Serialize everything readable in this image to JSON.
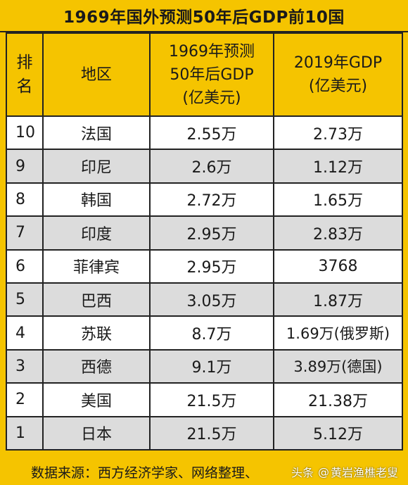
{
  "title": "1969年国外预测50年后GDP前10国",
  "headers": {
    "rank": [
      "排",
      "名"
    ],
    "region": "地区",
    "prediction": [
      "1969年预测",
      "50年后GDP",
      "(亿美元)"
    ],
    "gdp2019": [
      "2019年GDP",
      "(亿美元)"
    ]
  },
  "rows": [
    {
      "rank": "10",
      "region": "法国",
      "prediction": "2.55万",
      "gdp2019": "2.73万"
    },
    {
      "rank": "9",
      "region": "印尼",
      "prediction": "2.6万",
      "gdp2019": "1.12万"
    },
    {
      "rank": "8",
      "region": "韩国",
      "prediction": "2.72万",
      "gdp2019": "1.65万"
    },
    {
      "rank": "7",
      "region": "印度",
      "prediction": "2.95万",
      "gdp2019": "2.83万"
    },
    {
      "rank": "6",
      "region": "菲律宾",
      "prediction": "2.95万",
      "gdp2019": "3768"
    },
    {
      "rank": "5",
      "region": "巴西",
      "prediction": "3.05万",
      "gdp2019": "1.87万"
    },
    {
      "rank": "4",
      "region": "苏联",
      "prediction": "8.7万",
      "gdp2019": "1.69万(俄罗斯)"
    },
    {
      "rank": "3",
      "region": "西德",
      "prediction": "9.1万",
      "gdp2019": "3.89万(德国)"
    },
    {
      "rank": "2",
      "region": "美国",
      "prediction": "21.5万",
      "gdp2019": "21.38万"
    },
    {
      "rank": "1",
      "region": "日本",
      "prediction": "21.5万",
      "gdp2019": "5.12万"
    }
  ],
  "footer": "数据来源：西方经济学家、网络整理、",
  "watermark": {
    "brand": "头条",
    "handle": "黄岩渔樵老叟"
  },
  "colors": {
    "header_bg": "#f5c400",
    "row_light": "#ffffff",
    "row_dark": "#dcdcdc"
  }
}
